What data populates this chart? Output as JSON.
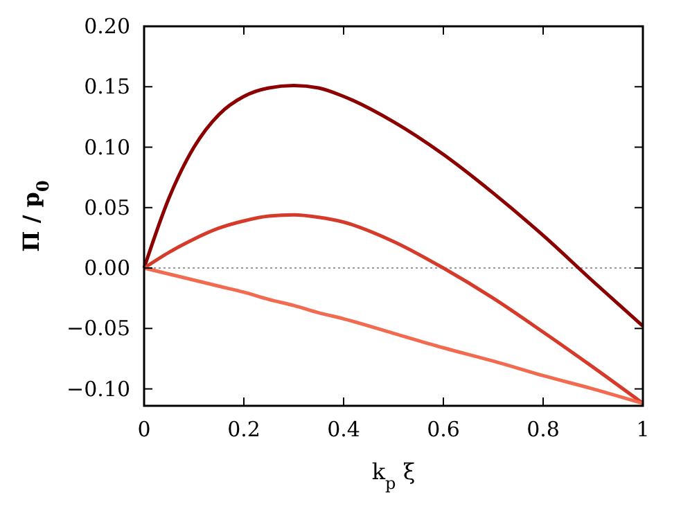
{
  "chart_data": {
    "type": "line",
    "xlabel": "k$_{p}$ ξ",
    "ylabel": "Π / p$_{0}$",
    "xlim": [
      0,
      1
    ],
    "ylim": [
      -0.114,
      0.2
    ],
    "xticks": [
      0,
      0.2,
      0.4,
      0.6,
      0.8,
      1
    ],
    "yticks": [
      {
        "value": -0.1,
        "label": "−0.10"
      },
      {
        "value": -0.05,
        "label": "−0.05"
      },
      {
        "value": 0,
        "label": "0.00"
      },
      {
        "value": 0.05,
        "label": "0.05"
      },
      {
        "value": 0.1,
        "label": "0.10"
      },
      {
        "value": 0.15,
        "label": "0.15"
      },
      {
        "value": 0.2,
        "label": "0.20"
      }
    ],
    "grid": false,
    "line_style": "solid",
    "marker": "none",
    "ref_lines": [
      {
        "axis": "y",
        "value": 0,
        "color": "#999999",
        "line_style": "dotted"
      }
    ],
    "x": [
      0,
      0.05,
      0.1,
      0.15,
      0.2,
      0.25,
      0.3,
      0.35,
      0.4,
      0.5,
      0.6,
      0.7,
      0.8,
      0.9,
      1
    ],
    "series": [
      {
        "color": "#8b0000",
        "values": [
          0,
          0.058,
          0.1,
          0.127,
          0.142,
          0.149,
          0.151,
          0.149,
          0.142,
          0.121,
          0.094,
          0.062,
          0.027,
          -0.011,
          -0.048
        ]
      },
      {
        "color": "#d63a2a",
        "values": [
          0,
          0.013,
          0.024,
          0.033,
          0.039,
          0.043,
          0.044,
          0.042,
          0.038,
          0.022,
          0,
          -0.025,
          -0.053,
          -0.082,
          -0.112
        ]
      },
      {
        "color": "#f26a4f",
        "values": [
          0,
          -0.005,
          -0.01,
          -0.015,
          -0.02,
          -0.026,
          -0.031,
          -0.037,
          -0.042,
          -0.054,
          -0.066,
          -0.077,
          -0.089,
          -0.1,
          -0.112
        ]
      }
    ]
  }
}
